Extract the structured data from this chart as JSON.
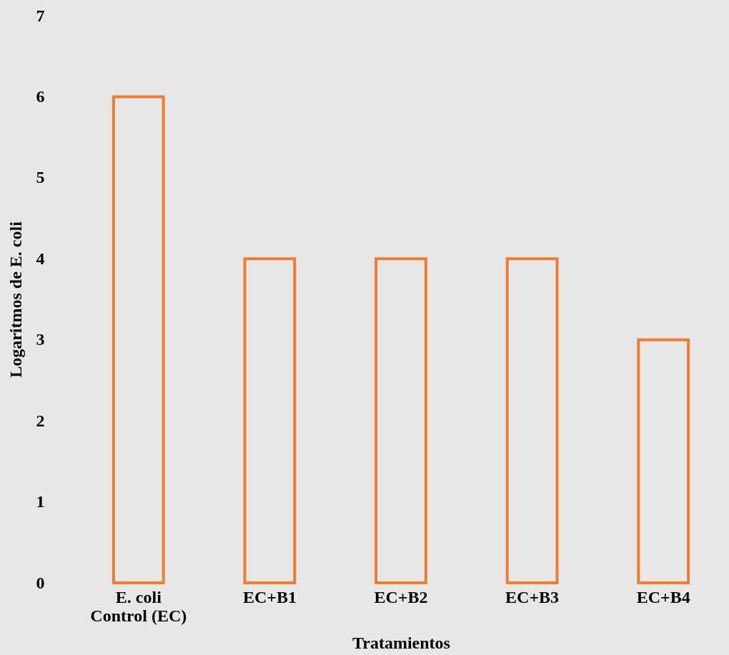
{
  "chart_data": {
    "type": "bar",
    "xlabel": "Tratamientos",
    "ylabel": "Logaritmos de E. coli",
    "categories": [
      "E. coli Control (EC)",
      "EC+B1",
      "EC+B2",
      "EC+B3",
      "EC+B4"
    ],
    "values": [
      6,
      4,
      4,
      4,
      3
    ],
    "color": "#ed7d31",
    "ylim": [
      0,
      7
    ],
    "yticks": [
      0,
      1,
      2,
      3,
      4,
      5,
      6,
      7
    ],
    "grid": false
  }
}
